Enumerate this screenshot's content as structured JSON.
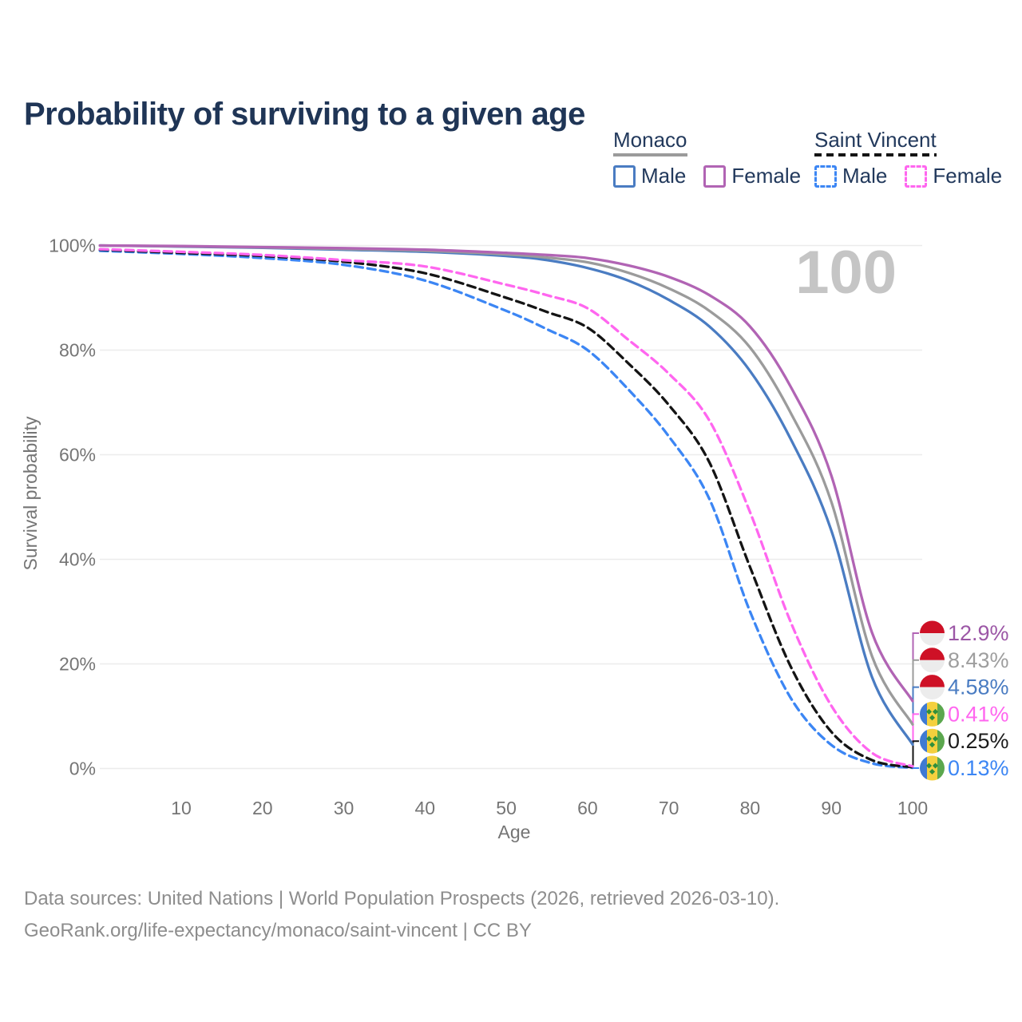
{
  "page": {
    "title": "Probability of surviving to a given age"
  },
  "legend": {
    "groups": [
      {
        "name": "Monaco",
        "line_style": "solid",
        "line_color": "#9b9b9b",
        "items": [
          {
            "label": "Male",
            "color": "#4a7cc2",
            "dashed": false
          },
          {
            "label": "Female",
            "color": "#b164b4",
            "dashed": false
          }
        ]
      },
      {
        "name": "Saint Vincent",
        "line_style": "dashed",
        "line_color": "#141414",
        "items": [
          {
            "label": "Male",
            "color": "#3c86f4",
            "dashed": true
          },
          {
            "label": "Female",
            "color": "#ff66ef",
            "dashed": true
          }
        ]
      }
    ]
  },
  "chart_data": {
    "type": "line",
    "title": "Probability of surviving to a given age",
    "xlabel": "Age",
    "ylabel": "Survival probability",
    "xlim": [
      0,
      100
    ],
    "ylim": [
      0,
      100
    ],
    "grid": "horizontal",
    "x_ticks": [
      10,
      20,
      30,
      40,
      50,
      60,
      70,
      80,
      90,
      100
    ],
    "y_ticks": [
      "0%",
      "20%",
      "40%",
      "60%",
      "80%",
      "100%"
    ],
    "hover_age_label": "100",
    "x": [
      0,
      10,
      20,
      30,
      40,
      50,
      55,
      60,
      65,
      70,
      75,
      80,
      85,
      90,
      95,
      100
    ],
    "series": [
      {
        "name": "Monaco Female",
        "country": "Monaco",
        "sex": "Female",
        "color": "#b164b4",
        "label_color": "#9c57a6",
        "dashed": false,
        "flag": "monaco",
        "end_label": "12.9%",
        "values": [
          100,
          99.9,
          99.7,
          99.5,
          99.2,
          98.6,
          98.2,
          97.6,
          96.2,
          94.0,
          90.5,
          84.5,
          73.0,
          56.0,
          26.0,
          12.9
        ]
      },
      {
        "name": "Monaco All",
        "country": "Monaco",
        "sex": "All",
        "color": "#9b9b9b",
        "label_color": "#9e9e9e",
        "dashed": false,
        "flag": "monaco",
        "end_label": "8.43%",
        "values": [
          100,
          99.85,
          99.65,
          99.35,
          99.0,
          98.3,
          97.7,
          96.8,
          94.8,
          91.8,
          87.5,
          80.5,
          68.0,
          51.0,
          21.5,
          8.43
        ]
      },
      {
        "name": "Monaco Male",
        "country": "Monaco",
        "sex": "Male",
        "color": "#4a7cc2",
        "label_color": "#4a7cc2",
        "dashed": false,
        "flag": "monaco",
        "end_label": "4.58%",
        "values": [
          100,
          99.8,
          99.55,
          99.2,
          98.8,
          98.0,
          97.2,
          95.7,
          93.3,
          89.6,
          84.5,
          76.0,
          63.0,
          45.5,
          17.5,
          4.58
        ]
      },
      {
        "name": "Saint Vincent Female",
        "country": "Saint Vincent",
        "sex": "Female",
        "color": "#ff66ef",
        "label_color": "#ff66ef",
        "dashed": true,
        "flag": "stvincent",
        "end_label": "0.41%",
        "values": [
          99.3,
          98.8,
          98.2,
          97.2,
          96.0,
          92.5,
          90.5,
          88.0,
          82.0,
          75.5,
          66.5,
          49.0,
          28.0,
          12.0,
          3.0,
          0.41
        ]
      },
      {
        "name": "Saint Vincent All",
        "country": "Saint Vincent",
        "sex": "All",
        "color": "#141414",
        "label_color": "#1c1c1c",
        "dashed": true,
        "flag": "stvincent",
        "end_label": "0.25%",
        "values": [
          99.2,
          98.6,
          98.0,
          96.9,
          94.7,
          90.0,
          87.3,
          84.3,
          77.5,
          69.5,
          58.5,
          38.5,
          19.5,
          7.0,
          1.6,
          0.25
        ]
      },
      {
        "name": "Saint Vincent Male",
        "country": "Saint Vincent",
        "sex": "Male",
        "color": "#3c86f4",
        "label_color": "#3c86f4",
        "dashed": true,
        "flag": "stvincent",
        "end_label": "0.13%",
        "values": [
          99.0,
          98.4,
          97.6,
          96.3,
          93.3,
          87.5,
          84.0,
          80.0,
          72.5,
          63.5,
          51.5,
          30.0,
          13.5,
          4.5,
          1.0,
          0.13
        ]
      }
    ],
    "flag_colors": {
      "monaco_red": "#ce1126",
      "monaco_white": "#ececec",
      "sv_blue": "#3f7ad2",
      "sv_gold": "#f4d03e",
      "sv_green": "#5ba74e",
      "sv_diamond": "#2f8f3c"
    }
  },
  "footer": {
    "line1": "Data sources: United Nations | World Population Prospects (2026, retrieved 2026-03-10).",
    "line2": "GeoRank.org/life-expectancy/monaco/saint-vincent | CC BY"
  }
}
